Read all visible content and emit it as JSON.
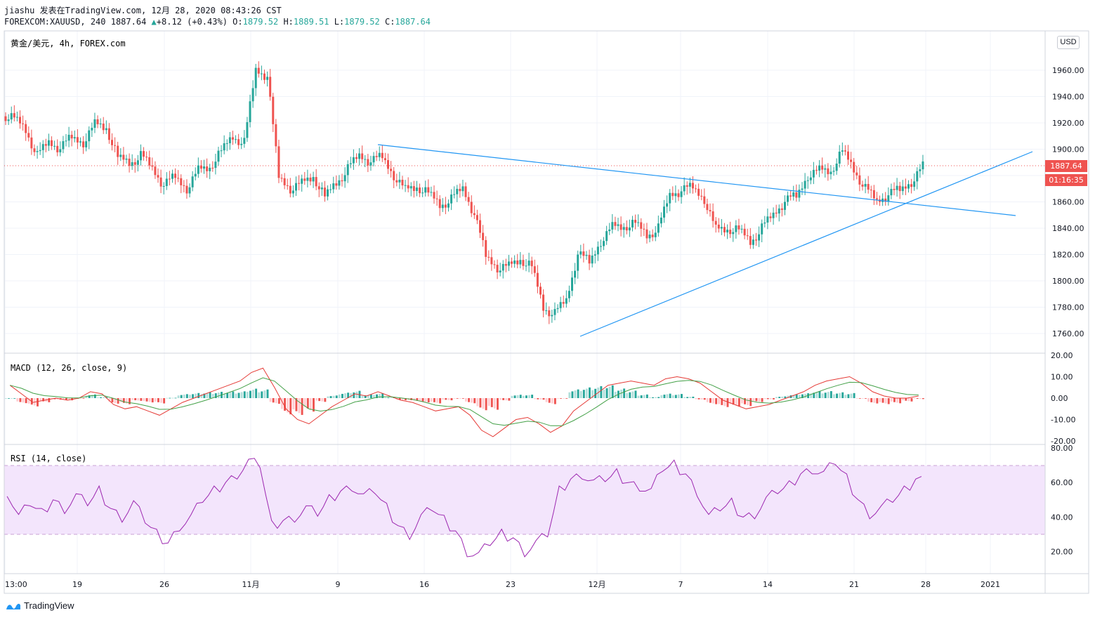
{
  "header": {
    "line1": "jiashu 发表在TradingView.com, 12月 28, 2020 08:43:26 CST",
    "symbol": "FOREXCOM:XAUUSD, 240",
    "last": "1887.64",
    "change": "+8.12 (+0.43%)",
    "o_label": "O:",
    "o_val": "1879.52",
    "h_label": "H:",
    "h_val": "1889.51",
    "l_label": "L:",
    "l_val": "1879.52",
    "c_label": "C:",
    "c_val": "1887.64"
  },
  "pane_title": "黄金/美元, 4h, FOREX.com",
  "currency_button": "USD",
  "price_tag": "1887.64",
  "countdown_tag": "01:16:35",
  "price_axis": [
    "1960.00",
    "1940.00",
    "1920.00",
    "1900.00",
    "1860.00",
    "1840.00",
    "1820.00",
    "1800.00",
    "1780.00",
    "1760.00"
  ],
  "macd": {
    "title": "MACD (12, 26, close, 9)",
    "axis": [
      "20.00",
      "10.00",
      "0.00",
      "-10.00",
      "-20.00"
    ]
  },
  "rsi": {
    "title": "RSI (14, close)",
    "axis": [
      "80.00",
      "60.00",
      "40.00",
      "20.00"
    ]
  },
  "time_axis": [
    "13:00",
    "19",
    "26",
    "11月",
    "9",
    "16",
    "23",
    "12月",
    "7",
    "14",
    "21",
    "28",
    "2021"
  ],
  "footer": {
    "brand": "TradingView"
  },
  "colors": {
    "up": "#26a69a",
    "down": "#ef5350",
    "trendline": "#2196f3",
    "macd_line": "#e53935",
    "signal_line": "#43a047",
    "rsi_line": "#9c27b0",
    "rsi_band": "#f3e5fc"
  },
  "chart_data": {
    "type": "line",
    "title": "黄金/美元, 4h, FOREX.com",
    "ylim": [
      1750,
      1980
    ],
    "series": [
      {
        "name": "XAUUSD",
        "values": [
          1925,
          1915,
          1895,
          1905,
          1900,
          1910,
          1905,
          1920,
          1915,
          1895,
          1890,
          1895,
          1885,
          1872,
          1880,
          1870,
          1885,
          1885,
          1900,
          1910,
          1905,
          1960,
          1955,
          1880,
          1870,
          1875,
          1878,
          1865,
          1875,
          1885,
          1895,
          1890,
          1895,
          1880,
          1870,
          1870,
          1868,
          1858,
          1862,
          1870,
          1850,
          1820,
          1810,
          1812,
          1815,
          1812,
          1780,
          1775,
          1785,
          1820,
          1815,
          1830,
          1842,
          1840,
          1845,
          1835,
          1840,
          1865,
          1868,
          1872,
          1862,
          1840,
          1838,
          1840,
          1830,
          1840,
          1850,
          1860,
          1865,
          1880,
          1885,
          1882,
          1900,
          1885,
          1870,
          1860,
          1865,
          1870,
          1875,
          1888
        ]
      },
      {
        "name": "MACD",
        "values": [
          6,
          2,
          -2,
          -1,
          0,
          -1,
          0,
          3,
          2,
          -3,
          -5,
          -4,
          -6,
          -8,
          -5,
          -2,
          0,
          2,
          4,
          6,
          8,
          12,
          14,
          5,
          -5,
          -10,
          -12,
          -8,
          -4,
          -1,
          2,
          1,
          3,
          1,
          -1,
          -2,
          -4,
          -6,
          -5,
          -4,
          -8,
          -15,
          -18,
          -14,
          -10,
          -9,
          -12,
          -16,
          -13,
          -6,
          -2,
          2,
          6,
          7,
          8,
          7,
          6,
          9,
          10,
          9,
          7,
          3,
          -1,
          -3,
          -5,
          -4,
          -3,
          -1,
          1,
          3,
          6,
          8,
          9,
          10,
          7,
          3,
          1,
          0,
          0,
          1
        ]
      },
      {
        "name": "RSI",
        "values": [
          55,
          40,
          48,
          42,
          50,
          45,
          52,
          48,
          55,
          45,
          40,
          48,
          38,
          30,
          25,
          35,
          40,
          50,
          55,
          60,
          65,
          72,
          70,
          35,
          38,
          40,
          45,
          42,
          50,
          55,
          58,
          52,
          55,
          45,
          35,
          30,
          40,
          45,
          38,
          32,
          20,
          18,
          25,
          30,
          28,
          20,
          25,
          30,
          55,
          62,
          65,
          60,
          62,
          65,
          60,
          58,
          55,
          68,
          70,
          65,
          55,
          40,
          45,
          48,
          40,
          42,
          50,
          55,
          58,
          65,
          68,
          65,
          72,
          62,
          50,
          42,
          45,
          50,
          55,
          62
        ]
      }
    ]
  }
}
